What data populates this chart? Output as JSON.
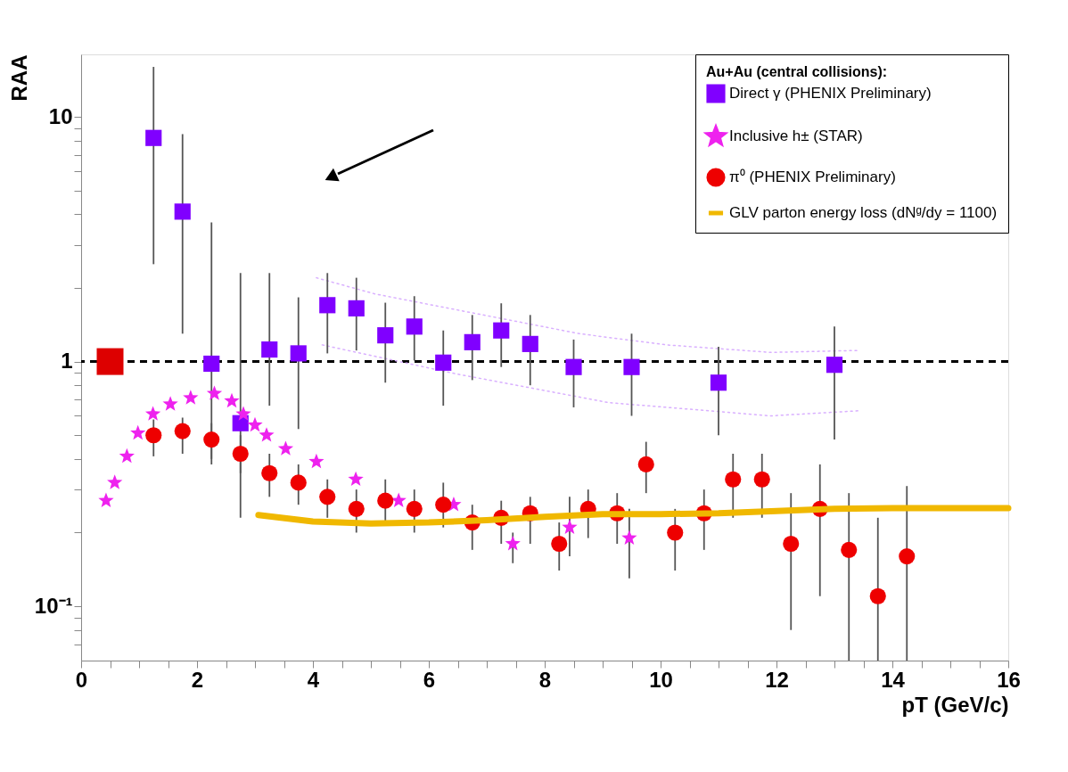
{
  "chart_data": {
    "type": "scatter",
    "xlabel": "pT (GeV/c)",
    "ylabel": "RAA",
    "legend_title": "Au+Au (central collisions):",
    "legend": "top right",
    "grid": false,
    "log": "y",
    "xlim": [
      0,
      16
    ],
    "ylim": [
      0.06,
      18
    ],
    "xticks": [
      0,
      {
        "value": 0.5,
        "label": null
      },
      {
        "value": 1,
        "label": null
      },
      {
        "value": 1.5,
        "label": null
      },
      2,
      {
        "value": 2.5,
        "label": null
      },
      {
        "value": 3,
        "label": null
      },
      {
        "value": 3.5,
        "label": null
      },
      4,
      {
        "value": 4.5,
        "label": null
      },
      {
        "value": 5,
        "label": null
      },
      {
        "value": 5.5,
        "label": null
      },
      6,
      {
        "value": 6.5,
        "label": null
      },
      {
        "value": 7,
        "label": null
      },
      {
        "value": 7.5,
        "label": null
      },
      8,
      {
        "value": 8.5,
        "label": null
      },
      {
        "value": 9,
        "label": null
      },
      {
        "value": 9.5,
        "label": null
      },
      10,
      {
        "value": 10.5,
        "label": null
      },
      {
        "value": 11,
        "label": null
      },
      {
        "value": 11.5,
        "label": null
      },
      12,
      {
        "value": 12.5,
        "label": null
      },
      {
        "value": 13,
        "label": null
      },
      {
        "value": 13.5,
        "label": null
      },
      14,
      {
        "value": 14.5,
        "label": null
      },
      {
        "value": 15,
        "label": null
      },
      {
        "value": 15.5,
        "label": null
      },
      16
    ],
    "yticks": [
      {
        "value": 0.07,
        "label": null
      },
      {
        "value": 0.08,
        "label": null
      },
      {
        "value": 0.09,
        "label": null
      },
      {
        "value": 0.1,
        "label": "10⁻¹"
      },
      {
        "value": 0.2,
        "label": null
      },
      {
        "value": 0.3,
        "label": null
      },
      {
        "value": 0.4,
        "label": null
      },
      {
        "value": 0.5,
        "label": null
      },
      {
        "value": 0.6,
        "label": null
      },
      {
        "value": 0.7,
        "label": null
      },
      {
        "value": 0.8,
        "label": null
      },
      {
        "value": 0.9,
        "label": null
      },
      1,
      {
        "value": 2,
        "label": null
      },
      {
        "value": 3,
        "label": null
      },
      {
        "value": 4,
        "label": null
      },
      {
        "value": 5,
        "label": null
      },
      {
        "value": 6,
        "label": null
      },
      {
        "value": 7,
        "label": null
      },
      {
        "value": 8,
        "label": null
      },
      {
        "value": 9,
        "label": null
      },
      10
    ],
    "ref_lines": [
      {
        "axis": "y",
        "value": 1,
        "line_style": "dashed",
        "color": "#000000"
      }
    ],
    "series": [
      {
        "type": "line",
        "color": "#d9b0ff",
        "line_style": "dotted",
        "x": [
          4.06,
          5.07,
          8.6,
          10.1,
          11.9,
          13.4
        ],
        "values": [
          2.2,
          1.89,
          1.3,
          1.17,
          1.09,
          1.11
        ]
      },
      {
        "type": "line",
        "color": "#d9b0ff",
        "line_style": "dotted",
        "x": [
          4.16,
          6.48,
          9.1,
          11.9,
          13.45
        ],
        "values": [
          1.17,
          0.89,
          0.68,
          0.6,
          0.63
        ]
      },
      {
        "name": "Direct γ (PHENIX Preliminary)",
        "color": "#8000ff",
        "marker": "square",
        "x": [
          1.25,
          1.75,
          2.25,
          2.75,
          3.25,
          3.75,
          4.25,
          4.75,
          5.25,
          5.75,
          6.25,
          6.75,
          7.25,
          7.75,
          8.5,
          9.5,
          11,
          13
        ],
        "values": [
          8.2,
          4.1,
          0.98,
          0.56,
          1.12,
          1.08,
          1.7,
          1.65,
          1.28,
          1.39,
          0.99,
          1.2,
          1.34,
          1.18,
          0.95,
          0.95,
          0.82,
          0.97
        ],
        "errors": [
          [
            2.5,
            16
          ],
          [
            1.3,
            8.5
          ],
          [
            0.38,
            3.7
          ],
          [
            0.23,
            2.3
          ],
          [
            0.66,
            2.3
          ],
          [
            0.53,
            1.83
          ],
          [
            1.08,
            2.3
          ],
          [
            1.11,
            2.2
          ],
          [
            0.82,
            1.74
          ],
          [
            1.01,
            1.85
          ],
          [
            0.66,
            1.34
          ],
          [
            0.84,
            1.55
          ],
          [
            0.95,
            1.73
          ],
          [
            0.8,
            1.55
          ],
          [
            0.65,
            1.23
          ],
          [
            0.6,
            1.3
          ],
          [
            0.5,
            1.15
          ],
          [
            0.48,
            1.39
          ]
        ]
      },
      {
        "name": "Inclusive h± (STAR)",
        "color": "#ee22ee",
        "marker": "star",
        "x": [
          0.43,
          0.58,
          0.79,
          0.98,
          1.24,
          1.54,
          1.89,
          2.3,
          2.6,
          2.8,
          3.0,
          3.2,
          3.53,
          4.06,
          4.74,
          5.48,
          6.43,
          7.45,
          8.43,
          9.46
        ],
        "values": [
          0.27,
          0.32,
          0.41,
          0.51,
          0.61,
          0.67,
          0.71,
          0.74,
          0.69,
          0.61,
          0.55,
          0.5,
          0.44,
          0.39,
          0.33,
          0.27,
          0.26,
          0.18,
          0.21,
          0.19
        ],
        "errors": [
          null,
          null,
          null,
          null,
          null,
          null,
          null,
          null,
          null,
          null,
          null,
          null,
          null,
          null,
          null,
          null,
          null,
          [
            0.15,
            0.2
          ],
          [
            0.16,
            0.28
          ],
          [
            0.13,
            0.25
          ]
        ]
      },
      {
        "name": "π⁰ (PHENIX Preliminary)",
        "color": "#ee0000",
        "marker": "circle",
        "x": [
          1.25,
          1.75,
          2.25,
          2.75,
          3.25,
          3.75,
          4.25,
          4.75,
          5.25,
          5.75,
          6.25,
          6.75,
          7.25,
          7.75,
          8.25,
          8.75,
          9.25,
          9.75,
          10.25,
          10.75,
          11.25,
          11.75,
          12.25,
          12.75,
          13.25,
          13.75,
          14.25
        ],
        "values": [
          0.5,
          0.52,
          0.48,
          0.42,
          0.35,
          0.32,
          0.28,
          0.25,
          0.27,
          0.25,
          0.26,
          0.22,
          0.23,
          0.24,
          0.18,
          0.25,
          0.24,
          0.38,
          0.2,
          0.24,
          0.33,
          0.33,
          0.18,
          0.25,
          0.17,
          0.11,
          0.16
        ],
        "errors": [
          [
            0.41,
            0.58
          ],
          [
            0.42,
            0.59
          ],
          [
            0.4,
            0.56
          ],
          [
            0.35,
            0.5
          ],
          [
            0.28,
            0.42
          ],
          [
            0.26,
            0.38
          ],
          [
            0.23,
            0.33
          ],
          [
            0.2,
            0.3
          ],
          [
            0.22,
            0.33
          ],
          [
            0.2,
            0.3
          ],
          [
            0.21,
            0.32
          ],
          [
            0.17,
            0.26
          ],
          [
            0.18,
            0.27
          ],
          [
            0.18,
            0.28
          ],
          [
            0.14,
            0.22
          ],
          [
            0.19,
            0.3
          ],
          [
            0.18,
            0.29
          ],
          [
            0.29,
            0.47
          ],
          [
            0.14,
            0.25
          ],
          [
            0.17,
            0.3
          ],
          [
            0.23,
            0.42
          ],
          [
            0.23,
            0.42
          ],
          [
            0.08,
            0.29
          ],
          [
            0.11,
            0.38
          ],
          [
            0.06,
            0.29
          ],
          [
            0.06,
            0.23
          ],
          [
            0.06,
            0.31
          ]
        ]
      },
      {
        "type": "line",
        "name": "GLV parton energy loss (dNᵍ/dy = 1100)",
        "color": "#f0b800",
        "line_style": "solid",
        "x": [
          3.06,
          4.0,
          5.0,
          6.0,
          7.0,
          8.0,
          9.0,
          10.0,
          11.0,
          12.0,
          13.0,
          14.0,
          16.0
        ],
        "values": [
          0.236,
          0.222,
          0.218,
          0.22,
          0.225,
          0.232,
          0.238,
          0.238,
          0.24,
          0.245,
          0.25,
          0.252,
          0.252
        ]
      },
      {
        "color": "#dd0000",
        "marker": "square",
        "x": [
          0.5
        ],
        "values": [
          1
        ]
      }
    ]
  }
}
